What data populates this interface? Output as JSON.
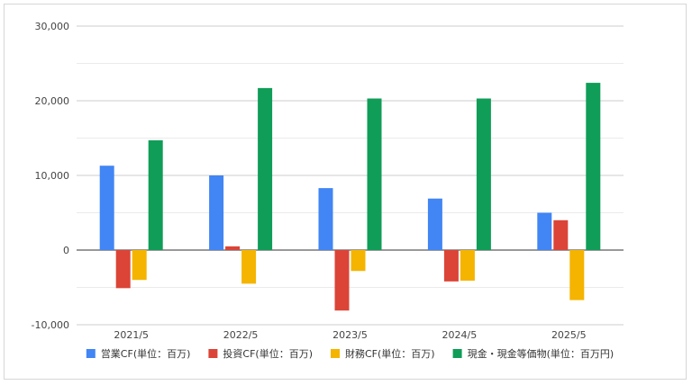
{
  "chart_data": {
    "type": "bar",
    "categories": [
      "2021/5",
      "2022/5",
      "2023/5",
      "2024/5",
      "2025/5"
    ],
    "series": [
      {
        "name": "営業CF(単位：百万)",
        "color": "#4285f4",
        "values": [
          11300,
          10000,
          8300,
          6900,
          5000
        ]
      },
      {
        "name": "投資CF(単位：百万)",
        "color": "#db4437",
        "values": [
          -5100,
          500,
          -8100,
          -4200,
          4000
        ]
      },
      {
        "name": "財務CF(単位：百万)",
        "color": "#f4b400",
        "values": [
          -4000,
          -4500,
          -2800,
          -4100,
          -6700
        ]
      },
      {
        "name": "現金・現金等価物(単位：百万円)",
        "color": "#0f9d58",
        "values": [
          14700,
          21700,
          20300,
          20300,
          22400
        ]
      }
    ],
    "ylim": [
      -10000,
      30000
    ],
    "yticks": [
      -10000,
      0,
      10000,
      20000,
      30000
    ],
    "ytick_labels": [
      "-10,000",
      "0",
      "10,000",
      "20,000",
      "30,000"
    ],
    "grid": true,
    "legend_position": "bottom"
  }
}
